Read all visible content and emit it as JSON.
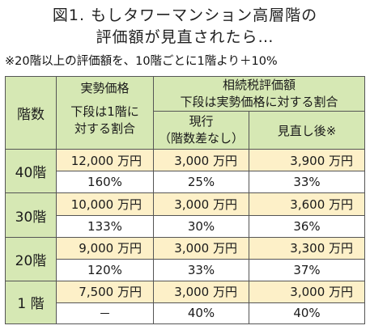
{
  "title": {
    "line1": "図1. もしタワーマンション高層階の",
    "line2": "評価額が見直されたら…"
  },
  "note": "※20階以上の評価額を、10階ごとに1階より＋10%",
  "header": {
    "floors": "階数",
    "market": "実勢価格",
    "market_sub_1": "下段は1階に",
    "market_sub_2": "対する割合",
    "tax_1": "相続税評価額",
    "tax_2": "下段は実勢価格に対する割合",
    "current_1": "現行",
    "current_2": "（階数差なし）",
    "revised": "見直し後※"
  },
  "rows": [
    {
      "floor": "40階",
      "market_price": "12,000 万円",
      "current_price": "3,000 万円",
      "revised_price": "3,900 万円",
      "market_pct": "160%",
      "current_pct": "25%",
      "revised_pct": "33%"
    },
    {
      "floor": "30階",
      "market_price": "10,000 万円",
      "current_price": "3,000 万円",
      "revised_price": "3,600 万円",
      "market_pct": "133%",
      "current_pct": "30%",
      "revised_pct": "36%"
    },
    {
      "floor": "20階",
      "market_price": "9,000 万円",
      "current_price": "3,000 万円",
      "revised_price": "3,300 万円",
      "market_pct": "120%",
      "current_pct": "33%",
      "revised_pct": "37%"
    },
    {
      "floor": "1 階",
      "market_price": "7,500 万円",
      "current_price": "3,000 万円",
      "revised_price": "3,000 万円",
      "market_pct": "－",
      "current_pct": "40%",
      "revised_pct": "40%"
    }
  ],
  "colors": {
    "header_bg": "#d6e8b4",
    "price_row_bg": "#fdf0c8",
    "border": "#555555"
  }
}
